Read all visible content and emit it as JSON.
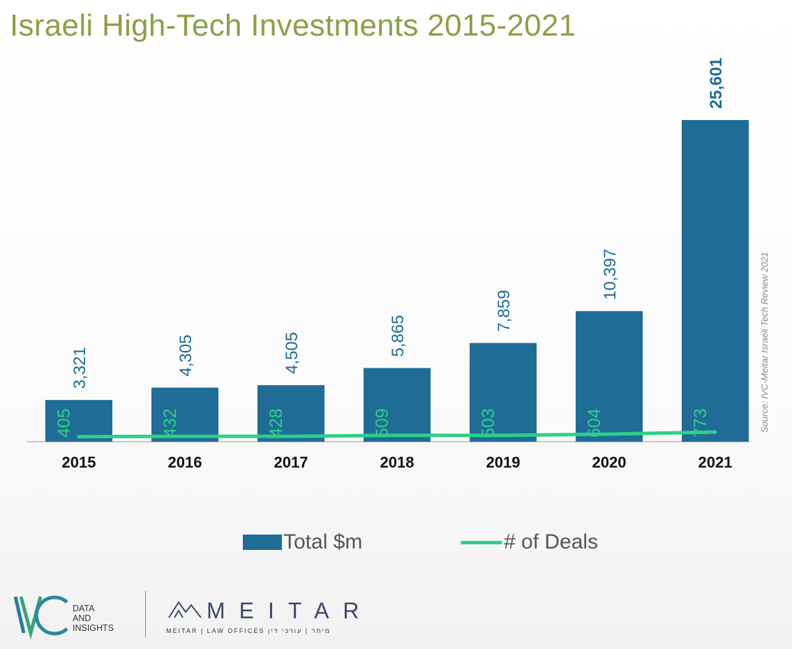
{
  "title": "Israeli High-Tech Investments 2015-2021",
  "source_note": "Source: IVC-Meitar Israeli Tech Review 2021",
  "legend": {
    "bars_label": "Total $m",
    "line_label": "# of Deals"
  },
  "colors": {
    "bar": "#1f6d96",
    "line": "#2fcf8a",
    "title": "#8aa048"
  },
  "logos": {
    "ivc_mark": "IVC",
    "ivc_lines": [
      "DATA",
      "AND",
      "INSIGHTS"
    ],
    "meitar_word": "MEITAR",
    "meitar_sub": "MEITAR | LAW OFFICES   מיתר | עורכי דין"
  },
  "chart_data": {
    "type": "bar",
    "categories": [
      "2015",
      "2016",
      "2017",
      "2018",
      "2019",
      "2020",
      "2021"
    ],
    "series": [
      {
        "name": "Total $m",
        "type": "bar",
        "values": [
          3321,
          4305,
          4505,
          5865,
          7859,
          10397,
          25601
        ],
        "labels": [
          "3,321",
          "4,305",
          "4,505",
          "5,865",
          "7,859",
          "10,397",
          "25,601"
        ]
      },
      {
        "name": "# of Deals",
        "type": "line",
        "values": [
          405,
          432,
          428,
          509,
          503,
          604,
          773
        ],
        "labels": [
          "405",
          "432",
          "428",
          "509",
          "503",
          "604",
          "773"
        ]
      }
    ],
    "ylim": [
      0,
      26000
    ],
    "grid": false,
    "legend_position": "bottom"
  }
}
